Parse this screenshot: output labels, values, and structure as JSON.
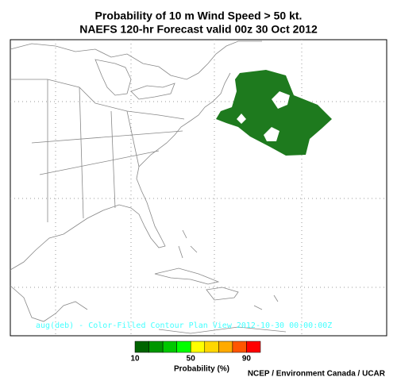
{
  "title": [
    "Probability of 10 m Wind Speed > 50 kt.",
    "NAEFS 120-hr Forecast valid 00z 30 Oct 2012"
  ],
  "map": {
    "footer_text": "aug(deb) - Color-Filled Contour Plan View 2012-10-30 00:00:00Z"
  },
  "colorbar": {
    "range": [
      10,
      100
    ],
    "colors": [
      "#006400",
      "#009600",
      "#00c800",
      "#00ff00",
      "#ffff00",
      "#ffd700",
      "#ffaa00",
      "#ff5500",
      "#ff0000"
    ],
    "labels": [
      10,
      50,
      90
    ],
    "title": "Probability (%)"
  },
  "credit": "NCEP / Environment Canada / UCAR"
}
